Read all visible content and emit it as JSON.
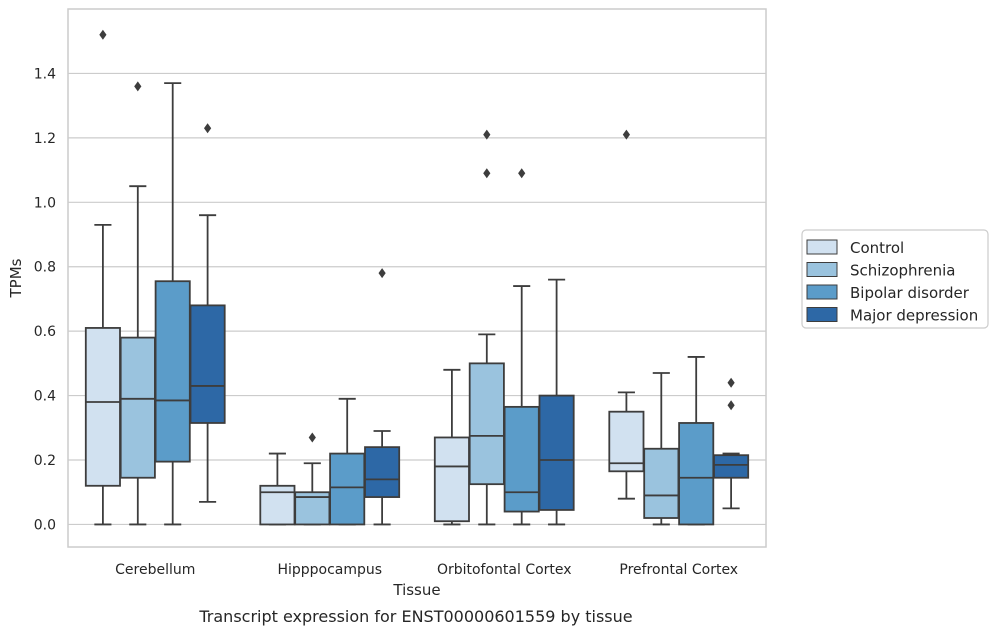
{
  "caption": "Transcript expression for ENST00000601559 by tissue",
  "chart_data": {
    "type": "boxplot",
    "xlabel": "Tissue",
    "ylabel": "TPMs",
    "ylim": [
      -0.07,
      1.6
    ],
    "yticks": [
      0.0,
      0.2,
      0.4,
      0.6,
      0.8,
      1.0,
      1.2,
      1.4
    ],
    "ytick_labels": [
      "0.0",
      "0.2",
      "0.4",
      "0.6",
      "0.8",
      "1.0",
      "1.2",
      "1.4"
    ],
    "grid": "horizontal",
    "legend_position": "right",
    "categories": [
      "Cerebellum",
      "Hipppocampus",
      "Orbitofontal Cortex",
      "Prefrontal Cortex"
    ],
    "series": [
      {
        "name": "Control",
        "color": "#d1e1f0",
        "boxes": [
          {
            "whislo": 0.0,
            "q1": 0.12,
            "med": 0.38,
            "q3": 0.61,
            "whishi": 0.93,
            "fliers": [
              1.52
            ]
          },
          {
            "whislo": 0.0,
            "q1": 0.0,
            "med": 0.1,
            "q3": 0.12,
            "whishi": 0.22,
            "fliers": []
          },
          {
            "whislo": 0.0,
            "q1": 0.01,
            "med": 0.18,
            "q3": 0.27,
            "whishi": 0.48,
            "fliers": []
          },
          {
            "whislo": 0.08,
            "q1": 0.165,
            "med": 0.19,
            "q3": 0.35,
            "whishi": 0.41,
            "fliers": [
              1.21
            ]
          }
        ]
      },
      {
        "name": "Schizophrenia",
        "color": "#9ac3de",
        "boxes": [
          {
            "whislo": 0.0,
            "q1": 0.145,
            "med": 0.39,
            "q3": 0.58,
            "whishi": 1.05,
            "fliers": [
              1.36
            ]
          },
          {
            "whislo": 0.0,
            "q1": 0.0,
            "med": 0.085,
            "q3": 0.1,
            "whishi": 0.19,
            "fliers": [
              0.27
            ]
          },
          {
            "whislo": 0.0,
            "q1": 0.125,
            "med": 0.275,
            "q3": 0.5,
            "whishi": 0.59,
            "fliers": [
              1.21,
              1.09
            ]
          },
          {
            "whislo": 0.0,
            "q1": 0.02,
            "med": 0.09,
            "q3": 0.235,
            "whishi": 0.47,
            "fliers": []
          }
        ]
      },
      {
        "name": "Bipolar disorder",
        "color": "#5b9cc9",
        "boxes": [
          {
            "whislo": 0.0,
            "q1": 0.195,
            "med": 0.385,
            "q3": 0.755,
            "whishi": 1.37,
            "fliers": []
          },
          {
            "whislo": 0.0,
            "q1": 0.0,
            "med": 0.115,
            "q3": 0.22,
            "whishi": 0.39,
            "fliers": []
          },
          {
            "whislo": 0.0,
            "q1": 0.04,
            "med": 0.1,
            "q3": 0.365,
            "whishi": 0.74,
            "fliers": [
              1.09
            ]
          },
          {
            "whislo": 0.0,
            "q1": 0.0,
            "med": 0.145,
            "q3": 0.315,
            "whishi": 0.52,
            "fliers": []
          }
        ]
      },
      {
        "name": "Major depression",
        "color": "#2d68a6",
        "boxes": [
          {
            "whislo": 0.07,
            "q1": 0.315,
            "med": 0.43,
            "q3": 0.68,
            "whishi": 0.96,
            "fliers": [
              1.23
            ]
          },
          {
            "whislo": 0.0,
            "q1": 0.085,
            "med": 0.14,
            "q3": 0.24,
            "whishi": 0.29,
            "fliers": [
              0.78
            ]
          },
          {
            "whislo": 0.0,
            "q1": 0.045,
            "med": 0.2,
            "q3": 0.4,
            "whishi": 0.76,
            "fliers": []
          },
          {
            "whislo": 0.05,
            "q1": 0.145,
            "med": 0.185,
            "q3": 0.215,
            "whishi": 0.22,
            "fliers": [
              0.44,
              0.37
            ]
          }
        ]
      }
    ]
  }
}
